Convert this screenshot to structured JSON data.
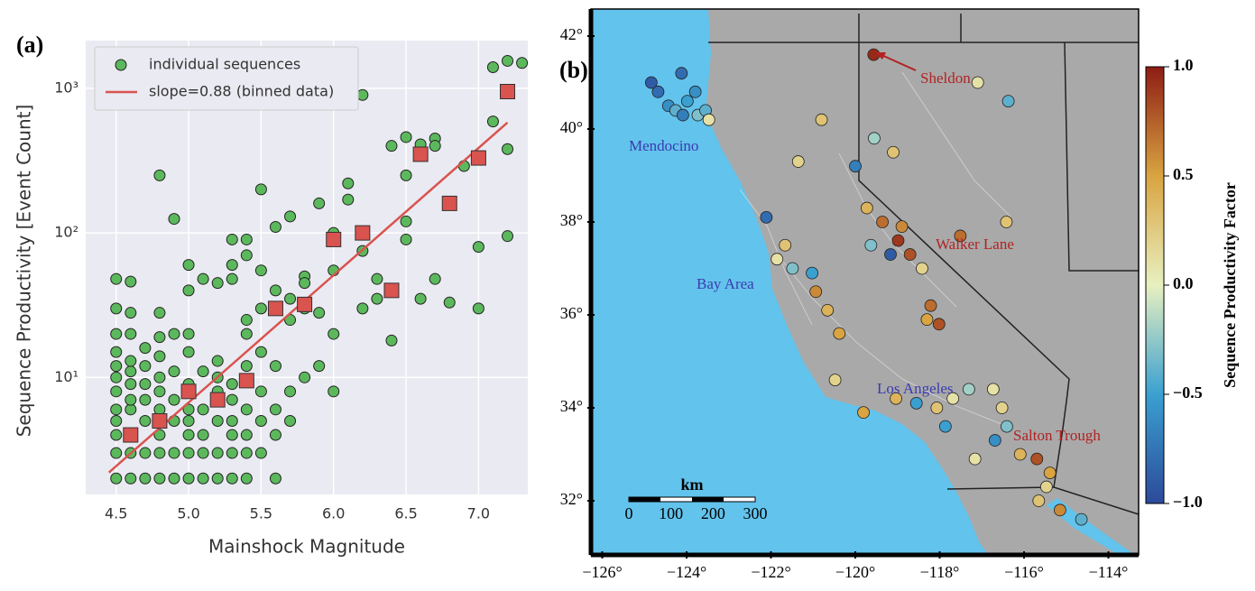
{
  "chart_data": [
    {
      "type": "scatter",
      "panel": "(a)",
      "xlabel": "Mainshock Magnitude",
      "ylabel": "Sequence Productivity [Event Count]",
      "xlim": [
        4.29,
        7.34
      ],
      "ylim": [
        1.55,
        2140
      ],
      "log_y": true,
      "grid": true,
      "background": "#eaeaf2",
      "legend": "upper left",
      "xticks": [
        4.5,
        {
          "value": 5,
          "label": "5.0"
        },
        5.5,
        {
          "value": 6,
          "label": "6.0"
        },
        6.5,
        {
          "value": 7,
          "label": "7.0"
        }
      ],
      "yticks": [
        {
          "value": 10,
          "label": "10¹"
        },
        {
          "value": 100,
          "label": "10²"
        },
        {
          "value": 1000,
          "label": "10³"
        }
      ],
      "series": [
        {
          "name": "individual sequences",
          "color": "#5cb85c",
          "x": [
            4.5,
            4.5,
            4.5,
            4.5,
            4.5,
            4.5,
            4.5,
            4.5,
            4.5,
            4.5,
            4.5,
            4.5,
            4.6,
            4.6,
            4.6,
            4.6,
            4.6,
            4.6,
            4.6,
            4.6,
            4.6,
            4.6,
            4.6,
            4.7,
            4.7,
            4.7,
            4.7,
            4.7,
            4.7,
            4.7,
            4.8,
            4.8,
            4.8,
            4.8,
            4.8,
            4.8,
            4.8,
            4.8,
            4.8,
            4.8,
            4.9,
            4.9,
            4.9,
            4.9,
            4.9,
            4.9,
            4.9,
            5.0,
            5.0,
            5.0,
            5.0,
            5.0,
            5.0,
            5.0,
            5.0,
            5.0,
            5.0,
            5.1,
            5.1,
            5.1,
            5.1,
            5.1,
            5.1,
            5.2,
            5.2,
            5.2,
            5.2,
            5.2,
            5.2,
            5.2,
            5.3,
            5.3,
            5.3,
            5.3,
            5.3,
            5.3,
            5.3,
            5.3,
            5.3,
            5.4,
            5.4,
            5.4,
            5.4,
            5.4,
            5.4,
            5.4,
            5.4,
            5.4,
            5.5,
            5.5,
            5.5,
            5.5,
            5.5,
            5.5,
            5.5,
            5.6,
            5.6,
            5.6,
            5.6,
            5.6,
            5.6,
            5.7,
            5.7,
            5.7,
            5.7,
            5.7,
            5.8,
            5.8,
            5.8,
            5.8,
            5.9,
            5.9,
            5.9,
            6.0,
            6.0,
            6.0,
            6.0,
            6.1,
            6.1,
            6.2,
            6.2,
            6.2,
            6.3,
            6.3,
            6.4,
            6.4,
            6.5,
            6.5,
            6.5,
            6.5,
            6.6,
            6.6,
            6.7,
            6.7,
            6.7,
            6.8,
            6.9,
            7.0,
            7.0,
            7.0,
            7.1,
            7.1,
            7.2,
            7.2,
            7.2,
            7.3
          ],
          "values": [
            2,
            3,
            4,
            5,
            6,
            8,
            10,
            12,
            15,
            20,
            30,
            48,
            2,
            3,
            4,
            6,
            7,
            9,
            11,
            13,
            20,
            28,
            46,
            2,
            3,
            5,
            7,
            9,
            12,
            16,
            2,
            3,
            4,
            6,
            8,
            10,
            14,
            19,
            28,
            250,
            2,
            3,
            5,
            7,
            11,
            125,
            20,
            2,
            3,
            4,
            5,
            6,
            9,
            15,
            20,
            40,
            60,
            2,
            3,
            4,
            6,
            11,
            48,
            2,
            3,
            5,
            8,
            10,
            45,
            13,
            2,
            3,
            4,
            5,
            7,
            9,
            60,
            90,
            48,
            2,
            3,
            4,
            6,
            12,
            20,
            70,
            90,
            25,
            3,
            5,
            8,
            15,
            55,
            30,
            200,
            2,
            4,
            6,
            12,
            40,
            110,
            5,
            8,
            25,
            35,
            130,
            10,
            30,
            50,
            45,
            12,
            160,
            28,
            8,
            20,
            55,
            100,
            170,
            220,
            30,
            75,
            900,
            35,
            48,
            18,
            400,
            90,
            460,
            120,
            250,
            35,
            410,
            48,
            450,
            400,
            33,
            290,
            30,
            80,
            340,
            590,
            1400,
            95,
            380,
            1550,
            1500
          ]
        },
        {
          "name": "slope=0.88 (binned data)",
          "type": "line",
          "color": "#d9534f",
          "x": [
            4.45,
            7.2
          ],
          "values": [
            2.2,
            580
          ],
          "binned": {
            "x": [
              4.6,
              4.8,
              5.0,
              5.2,
              5.4,
              5.6,
              5.8,
              6.0,
              6.2,
              6.4,
              6.6,
              6.8,
              7.0,
              7.2
            ],
            "values": [
              4,
              5,
              8,
              7,
              9.5,
              30,
              32,
              90,
              100,
              40,
              350,
              160,
              330,
              950
            ]
          }
        }
      ]
    },
    {
      "type": "map",
      "panel": "(b)",
      "xticks": [
        {
          "value": -126,
          "label": "−126°"
        },
        {
          "value": -124,
          "label": "−124°"
        },
        {
          "value": -122,
          "label": "−122°"
        },
        {
          "value": -120,
          "label": "−120°"
        },
        {
          "value": -118,
          "label": "−118°"
        },
        {
          "value": -116,
          "label": "−116°"
        },
        {
          "value": -114,
          "label": "−114°"
        }
      ],
      "yticks": [
        {
          "value": 32,
          "label": "32°"
        },
        {
          "value": 34,
          "label": "34°"
        },
        {
          "value": 36,
          "label": "36°"
        },
        {
          "value": 38,
          "label": "38°"
        },
        {
          "value": 40,
          "label": "40°"
        },
        {
          "value": 42,
          "label": "42°"
        }
      ],
      "colorbar": {
        "label": "Sequence Productivity Factor",
        "lim": [
          -1,
          1
        ],
        "ticks": [
          {
            "value": -1,
            "label": "−1.0"
          },
          {
            "value": -0.5,
            "label": "−0.5"
          },
          {
            "value": 0,
            "label": "0.0"
          },
          {
            "value": 0.5,
            "label": "0.5"
          },
          {
            "value": 1,
            "label": "1.0"
          }
        ],
        "colormap": [
          "#2c4a9a",
          "#3aa0d0",
          "#e8f0c0",
          "#d9a441",
          "#8e1c14"
        ]
      },
      "annotations": [
        {
          "text": "Sheldon",
          "color": "#b22222"
        },
        {
          "text": "Mendocino",
          "color": "#3b3bb0"
        },
        {
          "text": "Walker Lane",
          "color": "#b22222"
        },
        {
          "text": "Bay Area",
          "color": "#3b3bb0"
        },
        {
          "text": "Los Angeles",
          "color": "#3b3bb0"
        },
        {
          "text": "Salton Trough",
          "color": "#b22222"
        }
      ],
      "scale_bar": {
        "label": "km",
        "ticks": [
          0,
          100,
          200,
          300
        ]
      },
      "points": {
        "lon": [
          -125.3,
          -125.0,
          -124.8,
          -124.6,
          -124.5,
          -124.2,
          -124.0,
          -125.5,
          -124.3,
          -123.9,
          -124.7,
          -119.5,
          -120.9,
          -121.5,
          -122.3,
          -121.8,
          -121.6,
          -121.0,
          -120.7,
          -120.4,
          -121.1,
          -122.0,
          -119.6,
          -119.7,
          -119.3,
          -118.9,
          -119.1,
          -118.6,
          -118.8,
          -118.3,
          -118.1,
          -117.9,
          -118.2,
          -117.3,
          -119.5,
          -119.0,
          -120.0,
          -116.7,
          -115.9,
          -116.1,
          -119.0,
          -118.5,
          -118.0,
          -117.6,
          -117.2,
          -116.6,
          -116.4,
          -116.3,
          -116.6,
          -116.0,
          -115.6,
          -115.3,
          -115.4,
          -115.6,
          -115.1,
          -114.6,
          -117.8,
          -117.1,
          -119.8,
          -120.5
        ],
        "lat": [
          40.8,
          40.5,
          40.4,
          40.3,
          40.6,
          40.3,
          40.4,
          41.0,
          40.8,
          40.2,
          41.2,
          41.6,
          40.2,
          39.3,
          38.1,
          37.5,
          37.0,
          36.5,
          36.1,
          35.6,
          36.9,
          37.2,
          37.5,
          38.3,
          38.0,
          37.6,
          37.3,
          37.3,
          37.9,
          37.0,
          36.2,
          35.8,
          35.9,
          37.7,
          39.8,
          39.5,
          39.2,
          41.0,
          40.6,
          38.0,
          34.2,
          34.1,
          34.0,
          34.2,
          34.4,
          34.4,
          34.0,
          33.6,
          33.3,
          33.0,
          32.9,
          32.6,
          32.3,
          32.0,
          31.8,
          31.6,
          33.6,
          32.9,
          33.9,
          34.6
        ],
        "values": [
          -0.8,
          -0.6,
          -0.4,
          -0.7,
          -0.5,
          -0.3,
          -0.4,
          -0.9,
          -0.6,
          0.1,
          -0.8,
          0.95,
          0.3,
          0.2,
          -0.8,
          0.3,
          -0.3,
          0.6,
          0.4,
          0.5,
          -0.5,
          0.1,
          -0.3,
          0.4,
          0.7,
          0.9,
          -0.9,
          0.8,
          0.6,
          0.2,
          0.7,
          0.8,
          0.5,
          0.7,
          -0.2,
          0.3,
          -0.7,
          0.1,
          -0.4,
          0.3,
          0.4,
          -0.5,
          0.3,
          0.1,
          -0.2,
          0.1,
          0.2,
          -0.3,
          -0.6,
          0.4,
          0.8,
          0.5,
          0.2,
          0.3,
          0.6,
          -0.4,
          -0.5,
          0.1,
          0.5,
          0.2
        ]
      }
    }
  ]
}
